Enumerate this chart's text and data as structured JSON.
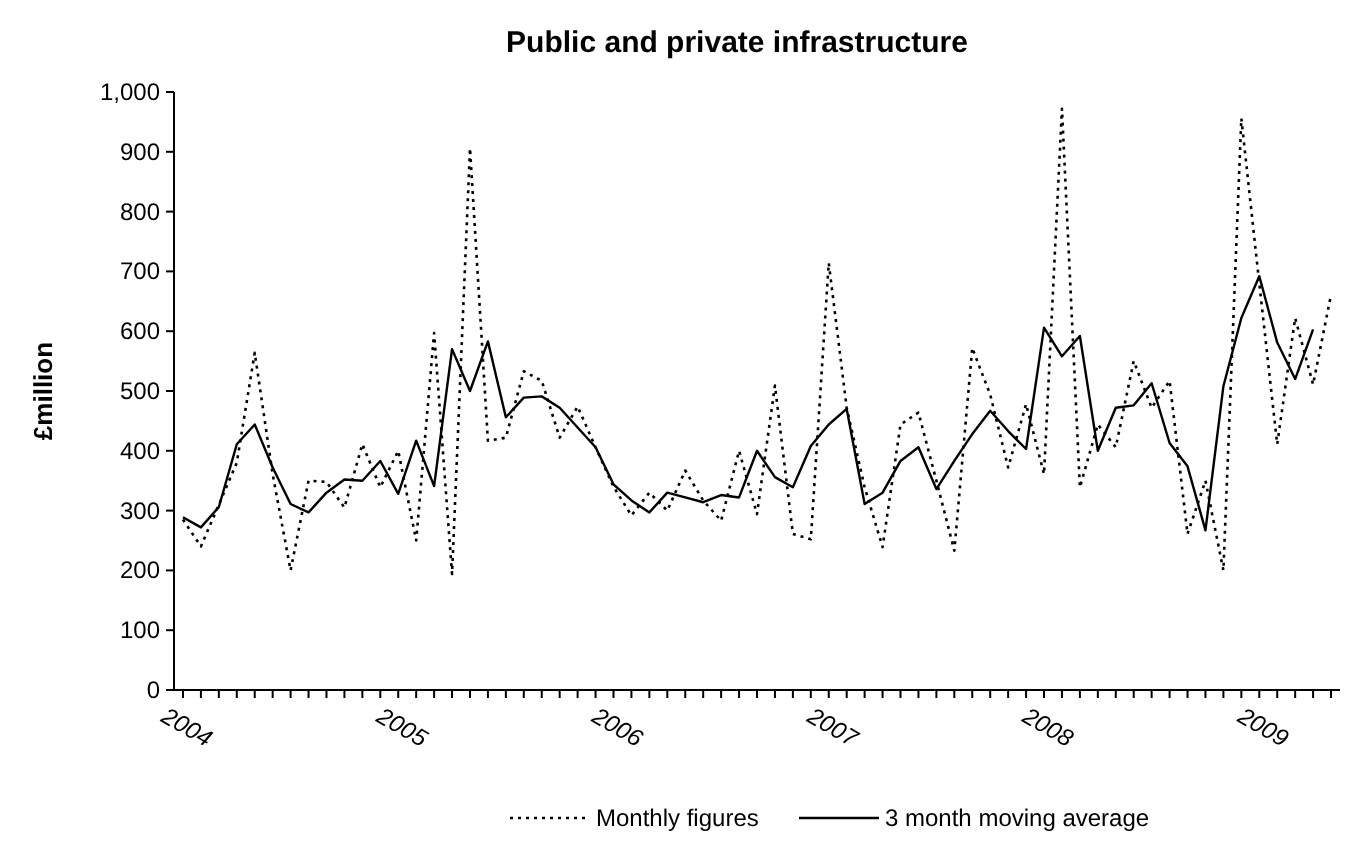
{
  "chart_data": {
    "type": "line",
    "title": "Public and private infrastructure",
    "ylabel": "£million",
    "categories": [
      "2004",
      null,
      null,
      null,
      null,
      null,
      null,
      null,
      null,
      null,
      null,
      null,
      "2005",
      null,
      null,
      null,
      null,
      null,
      null,
      null,
      null,
      null,
      null,
      null,
      "2006",
      null,
      null,
      null,
      null,
      null,
      null,
      null,
      null,
      null,
      null,
      null,
      "2007",
      null,
      null,
      null,
      null,
      null,
      null,
      null,
      null,
      null,
      null,
      null,
      "2008",
      null,
      null,
      null,
      null,
      null,
      null,
      null,
      null,
      null,
      null,
      null,
      "2009",
      null,
      null,
      null,
      null
    ],
    "series": [
      {
        "name": "Monthly figures",
        "color": "#000000",
        "line_style": "dotted",
        "values": [
          285,
          240,
          310,
          380,
          564,
          361,
          200,
          350,
          348,
          305,
          411,
          339,
          400,
          250,
          597,
          194,
          906,
          417,
          422,
          533,
          517,
          422,
          474,
          406,
          340,
          292,
          330,
          300,
          367,
          317,
          283,
          400,
          294,
          509,
          261,
          252,
          714,
          472,
          339,
          239,
          444,
          464,
          350,
          233,
          572,
          494,
          372,
          478,
          361,
          972,
          339,
          444,
          406,
          550,
          472,
          517,
          261,
          350,
          200,
          956,
          680,
          411,
          622,
          511,
          661
        ]
      },
      {
        "name": "3 month moving average",
        "color": "#000000",
        "line_style": "solid",
        "values": [
          289,
          272,
          306,
          411,
          444,
          372,
          311,
          297,
          330,
          352,
          350,
          383,
          328,
          417,
          341,
          570,
          500,
          583,
          456,
          489,
          491,
          472,
          439,
          406,
          344,
          317,
          297,
          330,
          322,
          314,
          326,
          322,
          400,
          356,
          339,
          408,
          444,
          470,
          311,
          330,
          383,
          406,
          336,
          383,
          428,
          467,
          433,
          403,
          606,
          558,
          592,
          400,
          472,
          476,
          513,
          413,
          374,
          267,
          508,
          622,
          692,
          581,
          520,
          603,
          null
        ]
      }
    ],
    "ylim": [
      0,
      1000
    ],
    "yticks": [
      0,
      100,
      200,
      300,
      400,
      500,
      600,
      700,
      800,
      900,
      {
        "value": 1000,
        "label": "1,000"
      }
    ],
    "legend": "bottom",
    "marker": "none"
  }
}
